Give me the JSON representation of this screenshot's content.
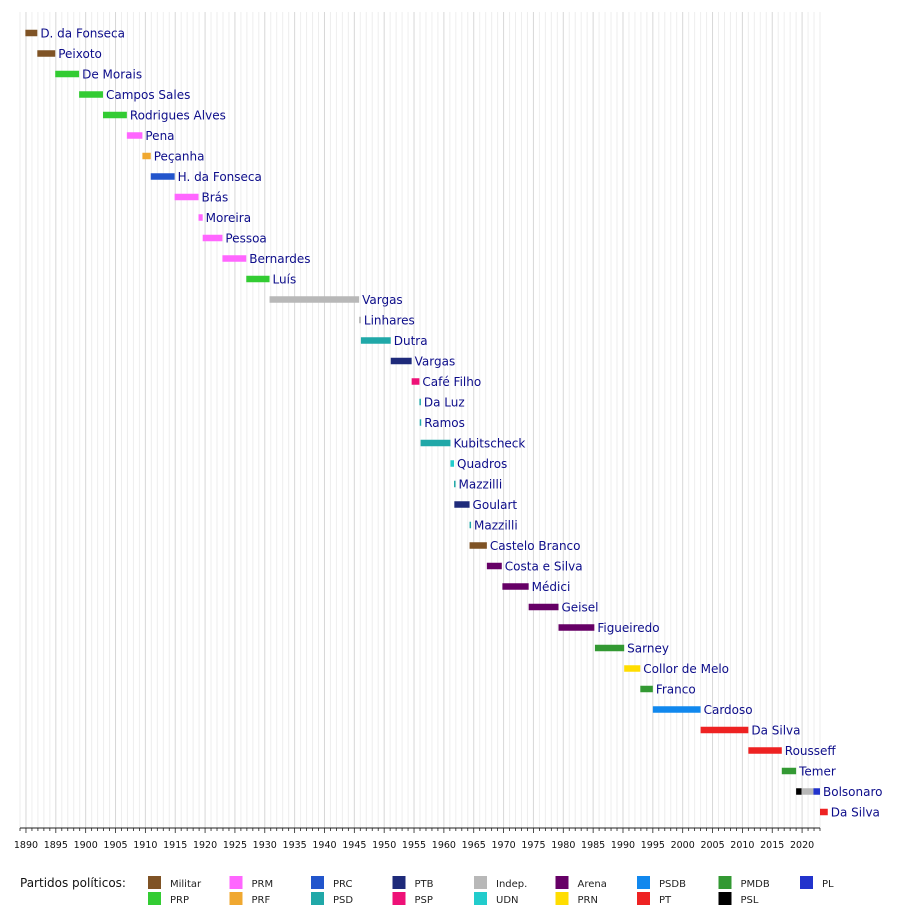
{
  "chart_data": {
    "type": "timeline",
    "xlim": [
      1889,
      2023
    ],
    "tick_years": [
      1890,
      1895,
      1900,
      1905,
      1910,
      1915,
      1920,
      1925,
      1930,
      1935,
      1940,
      1945,
      1950,
      1955,
      1960,
      1965,
      1970,
      1975,
      1980,
      1985,
      1990,
      1995,
      2000,
      2005,
      2010,
      2015,
      2020
    ],
    "grid": true,
    "legend": {
      "title": "Partidos políticos:",
      "placement": "bottom",
      "columns": [
        [
          {
            "name": "Militar",
            "color": "#7f5325"
          },
          {
            "name": "PRP",
            "color": "#33cc33"
          }
        ],
        [
          {
            "name": "PRM",
            "color": "#ff66ff"
          },
          {
            "name": "PRF",
            "color": "#f0a830"
          }
        ],
        [
          {
            "name": "PRC",
            "color": "#2255cc"
          },
          {
            "name": "PSD",
            "color": "#20a8a8"
          }
        ],
        [
          {
            "name": "PTB",
            "color": "#1e2a7a"
          },
          {
            "name": "PSP",
            "color": "#ee1177"
          }
        ],
        [
          {
            "name": "Indep.",
            "color": "#b8b8b8"
          },
          {
            "name": "UDN",
            "color": "#22cccc"
          }
        ],
        [
          {
            "name": "Arena",
            "color": "#660066"
          },
          {
            "name": "PRN",
            "color": "#ffdd00"
          }
        ],
        [
          {
            "name": "PSDB",
            "color": "#1188ee"
          },
          {
            "name": "PT",
            "color": "#ee2222"
          }
        ],
        [
          {
            "name": "PMDB",
            "color": "#339933"
          },
          {
            "name": "PSL",
            "color": "#000000"
          }
        ],
        [
          {
            "name": "PL",
            "color": "#2233cc"
          }
        ]
      ]
    },
    "presidents": [
      {
        "name": "D. da Fonseca",
        "start": 1889.9,
        "end": 1891.9,
        "party": "Militar",
        "color": "#7f5325"
      },
      {
        "name": "Peixoto",
        "start": 1891.9,
        "end": 1894.9,
        "party": "Militar",
        "color": "#7f5325"
      },
      {
        "name": "De Morais",
        "start": 1894.9,
        "end": 1898.9,
        "party": "PRP",
        "color": "#33cc33"
      },
      {
        "name": "Campos Sales",
        "start": 1898.9,
        "end": 1902.9,
        "party": "PRP",
        "color": "#33cc33"
      },
      {
        "name": "Rodrigues Alves",
        "start": 1902.9,
        "end": 1906.9,
        "party": "PRP",
        "color": "#33cc33"
      },
      {
        "name": "Pena",
        "start": 1906.9,
        "end": 1909.5,
        "party": "PRM",
        "color": "#ff66ff"
      },
      {
        "name": "Peçanha",
        "start": 1909.5,
        "end": 1910.9,
        "party": "PRF",
        "color": "#f0a830"
      },
      {
        "name": "H. da Fonseca",
        "start": 1910.9,
        "end": 1914.9,
        "party": "PRC",
        "color": "#2255cc"
      },
      {
        "name": "Brás",
        "start": 1914.9,
        "end": 1918.9,
        "party": "PRM",
        "color": "#ff66ff"
      },
      {
        "name": "Moreira",
        "start": 1918.9,
        "end": 1919.6,
        "party": "PRM",
        "color": "#ff66ff"
      },
      {
        "name": "Pessoa",
        "start": 1919.6,
        "end": 1922.9,
        "party": "PRM",
        "color": "#ff66ff"
      },
      {
        "name": "Bernardes",
        "start": 1922.9,
        "end": 1926.9,
        "party": "PRM",
        "color": "#ff66ff"
      },
      {
        "name": "Luís",
        "start": 1926.9,
        "end": 1930.8,
        "party": "PRP",
        "color": "#33cc33"
      },
      {
        "name": "Vargas",
        "start": 1930.8,
        "end": 1945.8,
        "party": "Indep.",
        "color": "#b8b8b8"
      },
      {
        "name": "Linhares",
        "start": 1945.8,
        "end": 1946.1,
        "party": "Indep.",
        "color": "#b8b8b8"
      },
      {
        "name": "Dutra",
        "start": 1946.1,
        "end": 1951.1,
        "party": "PSD",
        "color": "#20a8a8"
      },
      {
        "name": "Vargas",
        "start": 1951.1,
        "end": 1954.6,
        "party": "PTB",
        "color": "#1e2a7a"
      },
      {
        "name": "Café Filho",
        "start": 1954.6,
        "end": 1955.9,
        "party": "PSP",
        "color": "#ee1177"
      },
      {
        "name": "Da Luz",
        "start": 1955.9,
        "end": 1955.95,
        "party": "PSD",
        "color": "#20a8a8"
      },
      {
        "name": "Ramos",
        "start": 1955.95,
        "end": 1956.1,
        "party": "PSD",
        "color": "#20a8a8"
      },
      {
        "name": "Kubitscheck",
        "start": 1956.1,
        "end": 1961.1,
        "party": "PSD",
        "color": "#20a8a8"
      },
      {
        "name": "Quadros",
        "start": 1961.1,
        "end": 1961.7,
        "party": "UDN",
        "color": "#22cccc"
      },
      {
        "name": "Mazzilli",
        "start": 1961.7,
        "end": 1961.75,
        "party": "PSD",
        "color": "#20a8a8"
      },
      {
        "name": "Goulart",
        "start": 1961.75,
        "end": 1964.3,
        "party": "PTB",
        "color": "#1e2a7a"
      },
      {
        "name": "Mazzilli",
        "start": 1964.3,
        "end": 1964.35,
        "party": "PSD",
        "color": "#20a8a8"
      },
      {
        "name": "Castelo Branco",
        "start": 1964.3,
        "end": 1967.2,
        "party": "Militar",
        "color": "#7f5325"
      },
      {
        "name": "Costa e Silva",
        "start": 1967.2,
        "end": 1969.7,
        "party": "Arena",
        "color": "#660066"
      },
      {
        "name": "Médici",
        "start": 1969.8,
        "end": 1974.2,
        "party": "Arena",
        "color": "#660066"
      },
      {
        "name": "Geisel",
        "start": 1974.2,
        "end": 1979.2,
        "party": "Arena",
        "color": "#660066"
      },
      {
        "name": "Figueiredo",
        "start": 1979.2,
        "end": 1985.2,
        "party": "Arena",
        "color": "#660066"
      },
      {
        "name": "Sarney",
        "start": 1985.3,
        "end": 1990.2,
        "party": "PMDB",
        "color": "#339933"
      },
      {
        "name": "Collor de Melo",
        "start": 1990.2,
        "end": 1992.9,
        "party": "PRN",
        "color": "#ffdd00"
      },
      {
        "name": "Franco",
        "start": 1992.9,
        "end": 1995.0,
        "party": "PMDB",
        "color": "#339933"
      },
      {
        "name": "Cardoso",
        "start": 1995.0,
        "end": 2003.0,
        "party": "PSDB",
        "color": "#1188ee"
      },
      {
        "name": "Da Silva",
        "start": 2003.0,
        "end": 2011.0,
        "party": "PT",
        "color": "#ee2222"
      },
      {
        "name": "Rousseff",
        "start": 2011.0,
        "end": 2016.6,
        "party": "PT",
        "color": "#ee2222"
      },
      {
        "name": "Temer",
        "start": 2016.6,
        "end": 2019.0,
        "party": "PMDB",
        "color": "#339933"
      },
      {
        "name": "Bolsonaro",
        "start": 2019.0,
        "end": 2023.0,
        "party": "PSL / Indep. / PL",
        "color": "#2233cc",
        "segments": [
          {
            "start": 2019.0,
            "end": 2019.9,
            "color": "#000000"
          },
          {
            "start": 2019.9,
            "end": 2021.9,
            "color": "#b8b8b8"
          },
          {
            "start": 2021.9,
            "end": 2023.0,
            "color": "#2233cc"
          }
        ]
      },
      {
        "name": "Da Silva",
        "start": 2023.0,
        "end": 2024.3,
        "party": "PT",
        "color": "#ee2222"
      }
    ]
  }
}
